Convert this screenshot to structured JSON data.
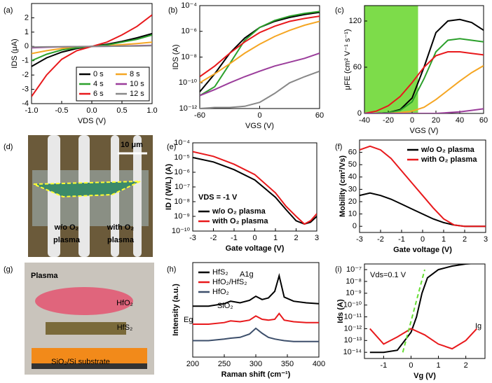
{
  "chart_data": [
    {
      "type": "line",
      "panel_label": "(a)",
      "xlabel": "VDS (V)",
      "ylabel": "IDS (μA)",
      "xlim": [
        -1,
        1
      ],
      "ylim": [
        -4,
        3
      ],
      "xticks": [
        {
          "value": -1,
          "label": "-1.0"
        },
        {
          "value": -0.5,
          "label": "-0.5"
        },
        {
          "value": 0,
          "label": "0.0"
        },
        {
          "value": 0.5,
          "label": "0.5"
        },
        {
          "value": 1,
          "label": "1.0"
        }
      ],
      "yticks": [
        -4,
        -3,
        -2,
        -1,
        0,
        1,
        2
      ],
      "legend": "lower right",
      "legend_columns": 2,
      "x": [
        -1,
        -0.75,
        -0.5,
        -0.25,
        0,
        0.25,
        0.5,
        0.75,
        1
      ],
      "series": [
        {
          "name": "0 s",
          "color": "#000000",
          "values": [
            -1.4,
            -0.8,
            -0.4,
            -0.15,
            0,
            0.15,
            0.35,
            0.6,
            0.9
          ]
        },
        {
          "name": "8 s",
          "color": "#f5a623",
          "values": [
            -0.5,
            -0.3,
            -0.15,
            -0.05,
            0,
            0.05,
            0.12,
            0.2,
            0.3
          ]
        },
        {
          "name": "4 s",
          "color": "#2ca02c",
          "values": [
            -1.0,
            -0.55,
            -0.25,
            -0.1,
            0,
            0.1,
            0.3,
            0.5,
            0.8
          ]
        },
        {
          "name": "10 s",
          "color": "#9b3d9b",
          "values": [
            -0.1,
            -0.06,
            -0.03,
            -0.01,
            0,
            0.01,
            0.03,
            0.05,
            0.08
          ]
        },
        {
          "name": "6 s",
          "color": "#e8191c",
          "values": [
            -3.5,
            -2.0,
            -0.9,
            -0.3,
            0,
            0.3,
            0.8,
            1.4,
            2.2
          ]
        },
        {
          "name": "12 s",
          "color": "#888888",
          "values": [
            -0.05,
            -0.03,
            -0.02,
            -0.01,
            0,
            0.01,
            0.02,
            0.03,
            0.05
          ]
        }
      ]
    },
    {
      "type": "line",
      "panel_label": "(b)",
      "xlabel": "VGS (V)",
      "ylabel": "IDS (A)",
      "log_y": true,
      "xlim": [
        -60,
        60
      ],
      "ylim": [
        1e-12,
        0.0001
      ],
      "xticks": [
        -60,
        0,
        60
      ],
      "yticks": [
        {
          "value": 1e-12,
          "label": "10⁻¹²"
        },
        {
          "value": 1e-10,
          "label": "10⁻¹⁰"
        },
        {
          "value": 1e-08,
          "label": "10⁻⁸"
        },
        {
          "value": 1e-06,
          "label": "10⁻⁶"
        },
        {
          "value": 0.0001,
          "label": "10⁻⁴"
        }
      ],
      "x": [
        -60,
        -45,
        -30,
        -15,
        0,
        15,
        30,
        45,
        60
      ],
      "series": [
        {
          "color": "#000000",
          "values": [
            2e-11,
            5e-10,
            2e-08,
            3e-07,
            2e-06,
            6e-06,
            1.2e-05,
            2e-05,
            3e-05
          ]
        },
        {
          "color": "#2ca02c",
          "values": [
            1e-11,
            5e-11,
            3e-09,
            2e-07,
            2e-06,
            7e-06,
            1.5e-05,
            2.5e-05,
            3.5e-05
          ]
        },
        {
          "color": "#e8191c",
          "values": [
            3e-10,
            2e-09,
            2e-08,
            1.5e-07,
            8e-07,
            2.5e-06,
            6e-06,
            1e-05,
            1.5e-05
          ]
        },
        {
          "color": "#f5a623",
          "values": [
            1e-10,
            5e-10,
            3e-09,
            2e-08,
            1e-07,
            4e-07,
            1.2e-06,
            3e-06,
            6e-06
          ]
        },
        {
          "color": "#9b3d9b",
          "values": [
            1e-11,
            3e-11,
            1e-10,
            3e-10,
            8e-10,
            2e-09,
            4e-09,
            8e-09,
            2e-08
          ]
        },
        {
          "color": "#888888",
          "values": [
            1e-12,
            1.2e-12,
            1.2e-12,
            1.5e-12,
            3e-12,
            1.5e-11,
            1e-10,
            3e-10,
            8e-10
          ]
        }
      ]
    },
    {
      "type": "line",
      "panel_label": "(c)",
      "xlabel": "VGS (V)",
      "ylabel": "μFE (cm² V⁻¹ s⁻¹)",
      "xlim": [
        -40,
        60
      ],
      "ylim": [
        0,
        140
      ],
      "xticks": [
        -40,
        -20,
        0,
        20,
        40,
        60
      ],
      "yticks": [
        0,
        60,
        120
      ],
      "shade": [
        -40,
        5
      ],
      "shade_color": "#7ddc4a",
      "x": [
        -40,
        -30,
        -20,
        -10,
        0,
        10,
        20,
        30,
        40,
        50,
        60
      ],
      "series": [
        {
          "color": "#000000",
          "values": [
            0,
            0,
            1,
            5,
            20,
            60,
            105,
            120,
            122,
            118,
            108
          ]
        },
        {
          "color": "#2ca02c",
          "values": [
            0,
            0,
            1,
            4,
            15,
            45,
            80,
            95,
            97,
            95,
            93
          ]
        },
        {
          "color": "#e8191c",
          "values": [
            0,
            3,
            10,
            22,
            40,
            60,
            75,
            80,
            80,
            78,
            76
          ]
        },
        {
          "color": "#f5a623",
          "values": [
            0,
            0,
            0,
            1,
            3,
            8,
            18,
            30,
            42,
            53,
            62
          ]
        },
        {
          "color": "#9b3d9b",
          "values": [
            0,
            0,
            0,
            0,
            0,
            0,
            0,
            1,
            2,
            4,
            6
          ]
        }
      ]
    },
    {
      "type": "image",
      "panel_label": "(d)",
      "texts": [
        "10 μm",
        "w/o O₂",
        "plasma",
        "with O₂",
        "plasma"
      ]
    },
    {
      "type": "line",
      "panel_label": "(e)",
      "xlabel": "Gate voltage (V)",
      "ylabel": "ID / (W/L) (A)",
      "log_y": true,
      "xlim": [
        -3,
        3
      ],
      "ylim": [
        1e-10,
        0.0001
      ],
      "xticks": [
        -3,
        -2,
        -1,
        0,
        1,
        2,
        3
      ],
      "yticks": [
        {
          "value": 1e-10,
          "label": "10⁻¹⁰"
        },
        {
          "value": 1e-09,
          "label": "10⁻⁹"
        },
        {
          "value": 1e-08,
          "label": "10⁻⁸"
        },
        {
          "value": 1e-07,
          "label": "10⁻⁷"
        },
        {
          "value": 1e-06,
          "label": "10⁻⁶"
        },
        {
          "value": 1e-05,
          "label": "10⁻⁵"
        },
        {
          "value": 0.0001,
          "label": "10⁻⁴"
        }
      ],
      "texts": [
        "VDS = -1 V"
      ],
      "legend": "lower left",
      "x": [
        -3,
        -2,
        -1,
        0,
        1,
        1.5,
        2,
        2.4,
        2.7,
        3
      ],
      "series": [
        {
          "name": "w/o O₂ plasma",
          "color": "#000000",
          "values": [
            1e-05,
            5e-06,
            1.5e-06,
            3e-07,
            2e-08,
            3e-09,
            5e-10,
            3e-10,
            4e-10,
            1e-09
          ]
        },
        {
          "name": "with O₂ plasma",
          "color": "#e8191c",
          "values": [
            2.5e-05,
            1.2e-05,
            3.5e-06,
            7e-07,
            4e-08,
            5e-09,
            1e-09,
            3e-10,
            5e-10,
            1.5e-09
          ]
        }
      ]
    },
    {
      "type": "line",
      "panel_label": "(f)",
      "xlabel": "Gate voltage (V)",
      "ylabel": "Mobility (cm²/Vs)",
      "xlim": [
        -3,
        3
      ],
      "ylim": [
        -5,
        70
      ],
      "xticks": [
        -3,
        -2,
        -1,
        0,
        1,
        2,
        3
      ],
      "yticks": [
        0,
        10,
        20,
        30,
        40,
        50,
        60
      ],
      "legend": "upper right",
      "x": [
        -3,
        -2.5,
        -2,
        -1.5,
        -1,
        -0.5,
        0,
        0.5,
        1,
        1.5,
        2,
        2.5,
        3
      ],
      "series": [
        {
          "name": "w/o O₂ plasma",
          "color": "#000000",
          "values": [
            25,
            27,
            25,
            22,
            18,
            14,
            10,
            6,
            3,
            1,
            0,
            0,
            0
          ]
        },
        {
          "name": "with O₂ plasma",
          "color": "#e8191c",
          "values": [
            62,
            65,
            62,
            55,
            45,
            35,
            25,
            15,
            6,
            1,
            0,
            0,
            0
          ]
        }
      ]
    },
    {
      "type": "image",
      "panel_label": "(g)",
      "texts": [
        "Plasma",
        "HfO₂",
        "HfS₂",
        "SiO₂/Si substrate"
      ]
    },
    {
      "type": "line",
      "panel_label": "(h)",
      "xlabel": "Raman shift (cm⁻¹)",
      "ylabel": "Intensity (a.u.)",
      "xlim": [
        200,
        400
      ],
      "ylim": [
        0,
        11.5
      ],
      "xticks": [
        200,
        250,
        300,
        350,
        400
      ],
      "yticks": [],
      "texts": [
        "Eg",
        "SiO₂",
        "A1g"
      ],
      "legend": "upper left",
      "x": [
        200,
        225,
        250,
        260,
        275,
        290,
        300,
        310,
        320,
        330,
        337,
        345,
        360,
        380,
        400
      ],
      "series": [
        {
          "name": "HfS₂",
          "color": "#000000",
          "values": [
            6.2,
            6.2,
            6.5,
            6.8,
            6.6,
            6.9,
            7.4,
            7.0,
            7.2,
            8.0,
            9.9,
            7.3,
            6.8,
            6.6,
            6.5
          ]
        },
        {
          "name": "HfO₂/HfS₂",
          "color": "#e8191c",
          "values": [
            4.0,
            4.0,
            4.2,
            4.4,
            4.3,
            4.5,
            5.0,
            4.6,
            4.5,
            4.6,
            5.3,
            4.5,
            4.3,
            4.2,
            4.2
          ]
        },
        {
          "name": "HfO₂",
          "color": "#3d4f6b",
          "values": [
            2.0,
            2.0,
            2.2,
            2.3,
            2.4,
            2.8,
            3.5,
            2.9,
            2.4,
            2.2,
            2.1,
            2.0,
            1.9,
            1.9,
            1.9
          ]
        }
      ]
    },
    {
      "type": "line",
      "panel_label": "(i)",
      "xlabel": "Vg (V)",
      "ylabel": "Ids (A)",
      "log_y": true,
      "xlim": [
        -1.7,
        2.7
      ],
      "ylim": [
        3e-15,
        3e-07
      ],
      "xticks": [
        -1,
        0,
        1,
        2
      ],
      "yticks": [
        {
          "value": 1e-14,
          "label": "10⁻¹⁴"
        },
        {
          "value": 1e-13,
          "label": "10⁻¹³"
        },
        {
          "value": 1e-12,
          "label": "10⁻¹²"
        },
        {
          "value": 1e-11,
          "label": "10⁻¹¹"
        },
        {
          "value": 1e-10,
          "label": "10⁻¹⁰"
        },
        {
          "value": 1e-09,
          "label": "10⁻⁹"
        },
        {
          "value": 1e-08,
          "label": "10⁻⁸"
        },
        {
          "value": 1e-07,
          "label": "10⁻⁷"
        }
      ],
      "texts": [
        "Vds=0.1 V",
        "Ig"
      ],
      "series": [
        {
          "color": "#000000",
          "x": [
            -1.5,
            -1,
            -0.5,
            0,
            0.2,
            0.4,
            0.6,
            1,
            1.5,
            2,
            2.4
          ],
          "values": [
            1e-14,
            1e-14,
            1.5e-14,
            5e-13,
            1e-11,
            1e-09,
            2e-08,
            1e-07,
            2e-07,
            3e-07,
            3.5e-07
          ]
        },
        {
          "color": "#e8191c",
          "x": [
            -1.5,
            -1,
            -0.5,
            0,
            0.5,
            1,
            1.5,
            2,
            2.4
          ],
          "values": [
            1e-12,
            5e-14,
            2e-13,
            1e-12,
            3e-13,
            5e-14,
            2e-14,
            1e-13,
            1e-12
          ]
        },
        {
          "color": "#66dd33",
          "dash": true,
          "x": [
            -0.3,
            0.5
          ],
          "values": [
            1e-14,
            1e-07
          ]
        }
      ]
    }
  ]
}
